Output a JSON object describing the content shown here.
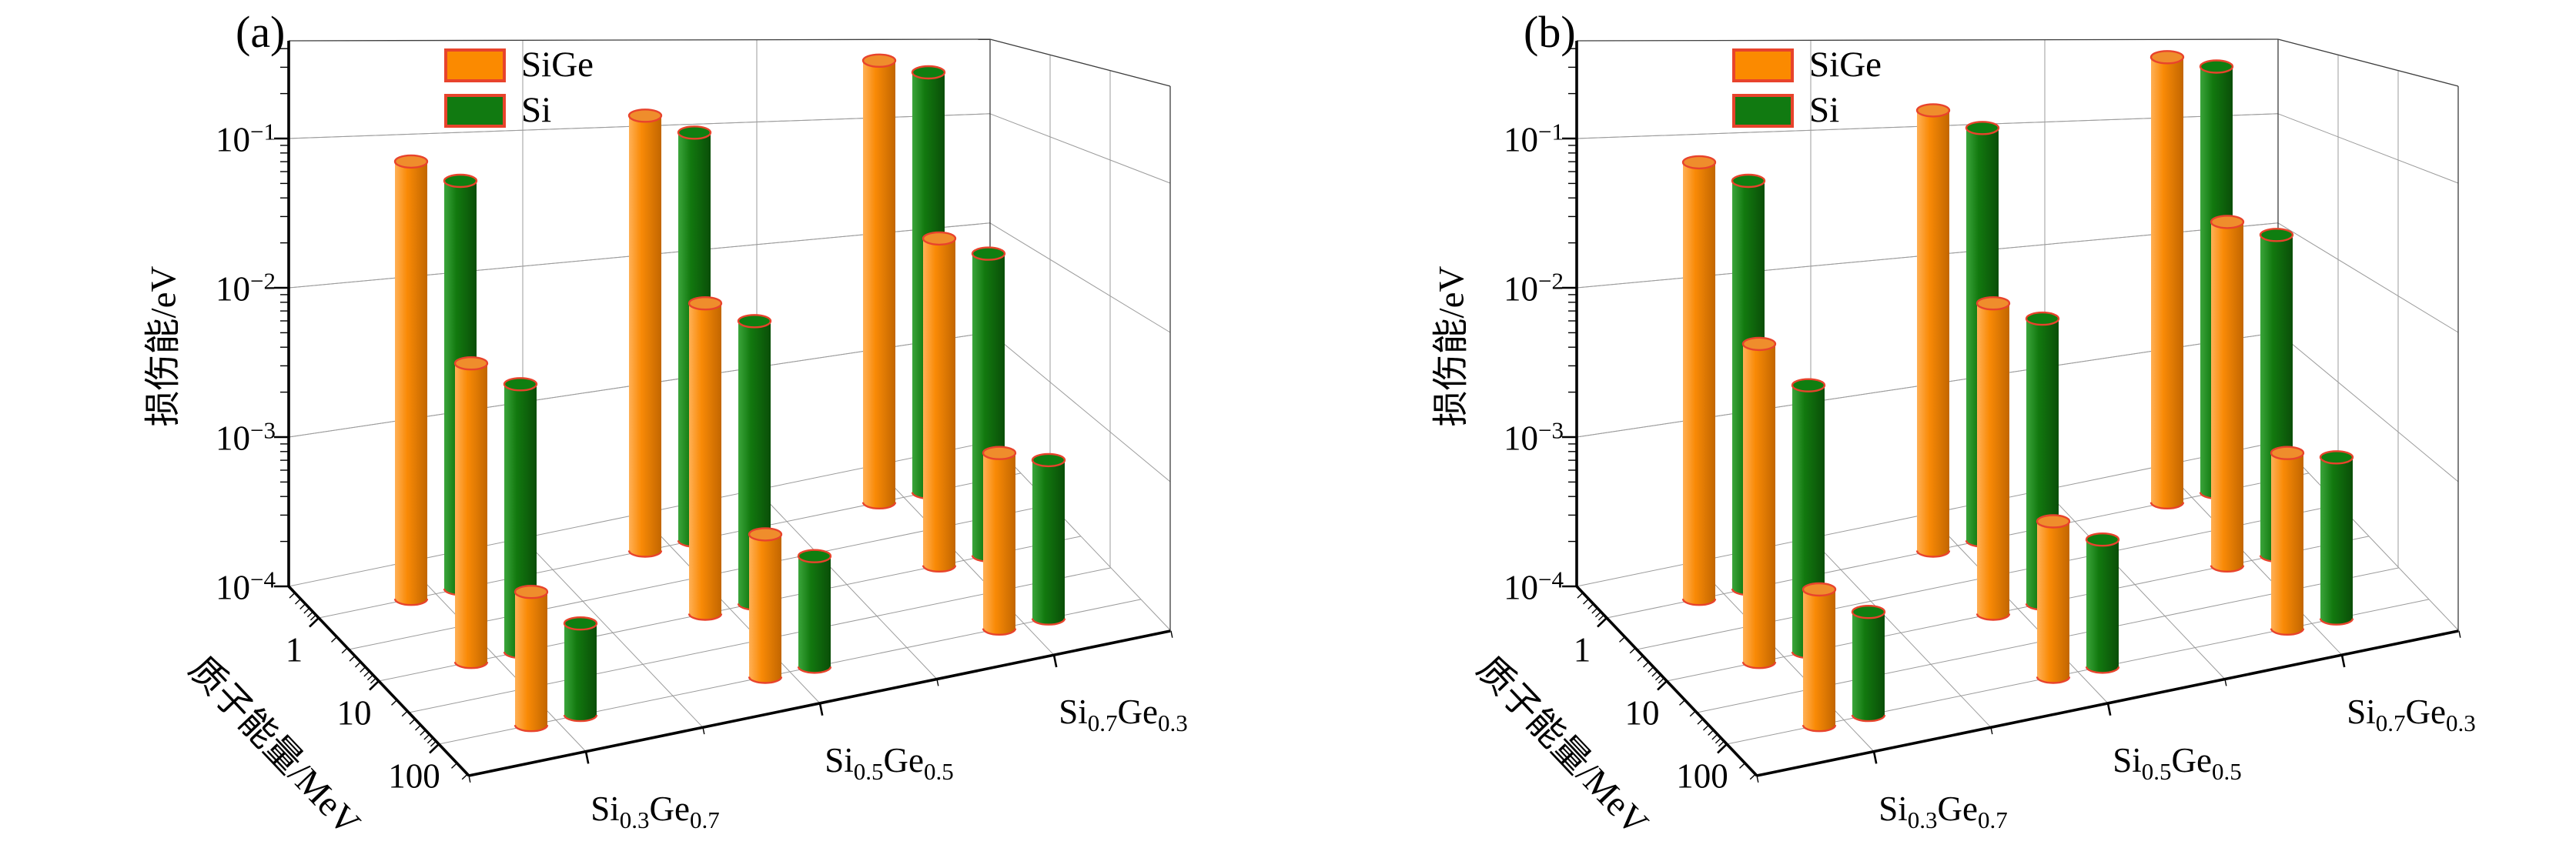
{
  "figure": {
    "background": "#ffffff"
  },
  "colors": {
    "sige_body": [
      "#FFB056",
      "#F98A06",
      "#C26600"
    ],
    "sige_top": "#EF8D2C",
    "si_body": [
      "#3BA53B",
      "#12790F",
      "#0A4E08"
    ],
    "si_top": "#0F7E10",
    "rim": "#E8432C",
    "legend_sige": "#FB8A00",
    "legend_si": "#117A11",
    "grid": "#9B9B9B",
    "frame": "#3D3D3D",
    "axis": "#000000"
  },
  "panels": [
    {
      "label": "(a)",
      "z_axis": {
        "title": "损伤能/eV",
        "tick_exponents": [
          -1,
          -2,
          -3,
          -4
        ]
      },
      "energy_axis": {
        "title": "质子能量/MeV",
        "ticks": [
          "1",
          "10",
          "100"
        ]
      },
      "composition_axis": {
        "ticks": [
          [
            [
              "Si",
              0
            ],
            [
              "0.3",
              1
            ],
            [
              "Ge",
              0
            ],
            [
              "0.7",
              1
            ]
          ],
          [
            [
              "Si",
              0
            ],
            [
              "0.5",
              1
            ],
            [
              "Ge",
              0
            ],
            [
              "0.5",
              1
            ]
          ],
          [
            [
              "Si",
              0
            ],
            [
              "0.7",
              1
            ],
            [
              "Ge",
              0
            ],
            [
              "0.3",
              1
            ]
          ]
        ]
      },
      "legend": [
        {
          "name": "SiGe"
        },
        {
          "name": "Si"
        }
      ]
    },
    {
      "label": "(b)",
      "z_axis": {
        "title": "损伤能/eV",
        "tick_exponents": [
          -1,
          -2,
          -3,
          -4
        ]
      },
      "energy_axis": {
        "title": "质子能量/MeV",
        "ticks": [
          "1",
          "10",
          "100"
        ]
      },
      "composition_axis": {
        "ticks": [
          [
            [
              "Si",
              0
            ],
            [
              "0.3",
              1
            ],
            [
              "Ge",
              0
            ],
            [
              "0.7",
              1
            ]
          ],
          [
            [
              "Si",
              0
            ],
            [
              "0.5",
              1
            ],
            [
              "Ge",
              0
            ],
            [
              "0.5",
              1
            ]
          ],
          [
            [
              "Si",
              0
            ],
            [
              "0.7",
              1
            ],
            [
              "Ge",
              0
            ],
            [
              "0.3",
              1
            ]
          ]
        ]
      },
      "legend": [
        {
          "name": "SiGe"
        },
        {
          "name": "Si"
        }
      ]
    }
  ],
  "chart_data": [
    {
      "type": "bar3d",
      "panel": "(a)",
      "zlabel": "损伤能/eV",
      "ylabel": "质子能量/MeV",
      "zscale": "log",
      "zrange": [
        0.0001,
        0.45
      ],
      "ztick_values": [
        0.1,
        0.01,
        0.001,
        0.0001
      ],
      "energies_MeV": [
        1,
        10,
        100
      ],
      "compositions": [
        "Si0.3Ge0.7",
        "Si0.5Ge0.5",
        "Si0.7Ge0.3"
      ],
      "value_dims": "values[energy_index][composition_index], damage energy in eV",
      "series": [
        {
          "name": "SiGe",
          "values": [
            [
              0.085,
              0.082,
              0.091
            ],
            [
              0.01,
              0.012,
              0.0155
            ],
            [
              0.00078,
              0.0009,
              0.0015
            ]
          ]
        },
        {
          "name": "Si",
          "values": [
            [
              0.054,
              0.054,
              0.065
            ],
            [
              0.0062,
              0.0078,
              0.0105
            ],
            [
              0.00041,
              0.00055,
              0.00115
            ]
          ]
        }
      ],
      "legend_position": "top-left-inside",
      "grid": true
    },
    {
      "type": "bar3d",
      "panel": "(b)",
      "zlabel": "损伤能/eV",
      "ylabel": "质子能量/MeV",
      "zscale": "log",
      "zrange": [
        0.0001,
        0.45
      ],
      "ztick_values": [
        0.1,
        0.01,
        0.001,
        0.0001
      ],
      "energies_MeV": [
        1,
        10,
        100
      ],
      "compositions": [
        "Si0.3Ge0.7",
        "Si0.5Ge0.5",
        "Si0.7Ge0.3"
      ],
      "value_dims": "values[energy_index][composition_index], damage energy in eV",
      "series": [
        {
          "name": "SiGe",
          "values": [
            [
              0.084,
              0.089,
              0.096
            ],
            [
              0.0135,
              0.012,
              0.02
            ],
            [
              0.00081,
              0.0011,
              0.0015
            ]
          ]
        },
        {
          "name": "Si",
          "values": [
            [
              0.054,
              0.058,
              0.071
            ],
            [
              0.0061,
              0.0081,
              0.014
            ],
            [
              0.00049,
              0.00071,
              0.0012
            ]
          ]
        }
      ],
      "legend_position": "top-left-inside",
      "grid": true
    }
  ]
}
